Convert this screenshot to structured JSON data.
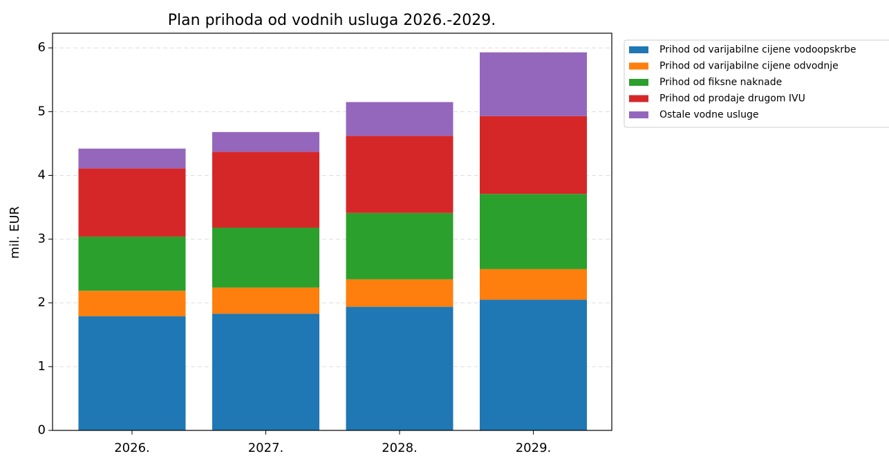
{
  "chart_data": {
    "type": "stacked_bar",
    "title": "Plan prihoda od vodnih usluga 2026.-2029.",
    "y_label": "mil. EUR",
    "categories": [
      "2026.",
      "2027.",
      "2028.",
      "2029."
    ],
    "series": [
      {
        "name": "Prihod od varijabilne cijene vodoopskrbe",
        "color": "#1f77b4",
        "values": [
          1.79,
          1.83,
          1.94,
          2.05
        ]
      },
      {
        "name": "Prihod od varijabilne cijene odvodnje",
        "color": "#ff7f0e",
        "values": [
          0.4,
          0.41,
          0.43,
          0.48
        ]
      },
      {
        "name": "Prihod od fiksne naknade",
        "color": "#2ca02c",
        "values": [
          0.85,
          0.94,
          1.04,
          1.18
        ]
      },
      {
        "name": "Prihod od prodaje drugom IVU",
        "color": "#d62728",
        "values": [
          1.07,
          1.19,
          1.21,
          1.22
        ]
      },
      {
        "name": "Ostale vodne usluge",
        "color": "#9467bd",
        "values": [
          0.31,
          0.31,
          0.53,
          1.0
        ]
      }
    ],
    "ylim": [
      0,
      6.23
    ],
    "yticks": [
      0,
      1,
      2,
      3,
      4,
      5,
      6
    ],
    "grid": true,
    "legend": "outside upper right"
  }
}
